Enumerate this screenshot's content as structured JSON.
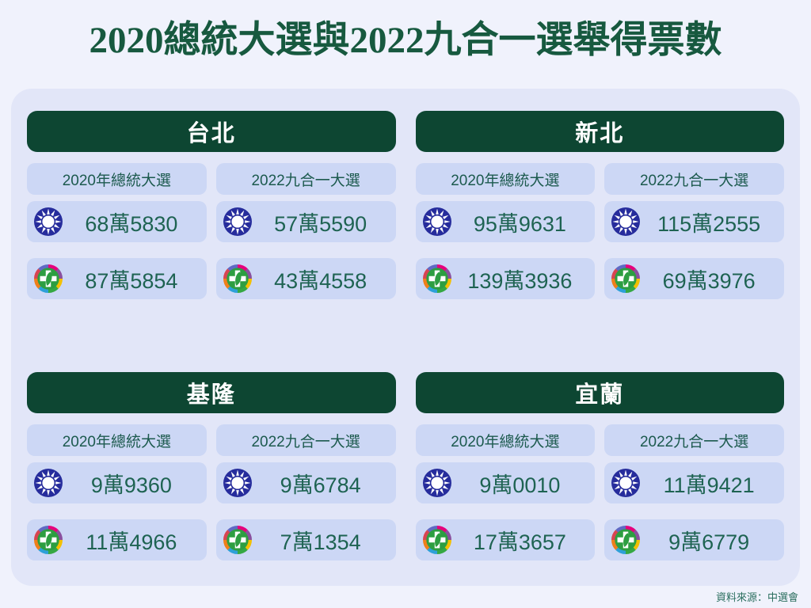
{
  "title": "2020總統大選與2022九合一選舉得票數",
  "source_note": "資料來源：中選會",
  "labels": {
    "election_2020": "2020年總統大選",
    "election_2022": "2022九合一大選"
  },
  "icons": {
    "kmt": "kmt-party-emblem",
    "dpp": "dpp-party-emblem"
  },
  "colors": {
    "page_bg": "#f0f2fc",
    "panel_bg": "#e2e6f8",
    "box_bg": "#ccd7f5",
    "header_bg": "#0d4632",
    "header_text": "#ffffff",
    "title_text": "#17593f",
    "label_text": "#1c5a4e",
    "value_text": "#1e6352",
    "source_text": "#2a6e5e",
    "kmt_blue": "#262c9c",
    "dpp_green": "#2d9e41"
  },
  "cities": [
    {
      "name": "台北",
      "votes_2020": {
        "kmt": "68萬5830",
        "dpp": "87萬5854"
      },
      "votes_2022": {
        "kmt": "57萬5590",
        "dpp": "43萬4558"
      }
    },
    {
      "name": "新北",
      "votes_2020": {
        "kmt": "95萬9631",
        "dpp": "139萬3936"
      },
      "votes_2022": {
        "kmt": "115萬2555",
        "dpp": "69萬3976"
      }
    },
    {
      "name": "基隆",
      "votes_2020": {
        "kmt": "9萬9360",
        "dpp": "11萬4966"
      },
      "votes_2022": {
        "kmt": "9萬6784",
        "dpp": "7萬1354"
      }
    },
    {
      "name": "宜蘭",
      "votes_2020": {
        "kmt": "9萬0010",
        "dpp": "17萬3657"
      },
      "votes_2022": {
        "kmt": "11萬9421",
        "dpp": "9萬6779"
      }
    }
  ],
  "chart_data": {
    "type": "table",
    "title": "2020總統大選與2022九合一選舉得票數",
    "categories": [
      "台北",
      "新北",
      "基隆",
      "宜蘭"
    ],
    "series": [
      {
        "name": "國民黨(KMT) 2020年總統大選",
        "values": [
          685830,
          959631,
          99360,
          90010
        ]
      },
      {
        "name": "民進黨(DPP) 2020年總統大選",
        "values": [
          875854,
          1393936,
          114966,
          173657
        ]
      },
      {
        "name": "國民黨(KMT) 2022九合一大選",
        "values": [
          575590,
          1152555,
          96784,
          119421
        ]
      },
      {
        "name": "民進黨(DPP) 2022九合一大選",
        "values": [
          434558,
          693976,
          71354,
          96779
        ]
      }
    ],
    "source": "資料來源：中選會"
  }
}
